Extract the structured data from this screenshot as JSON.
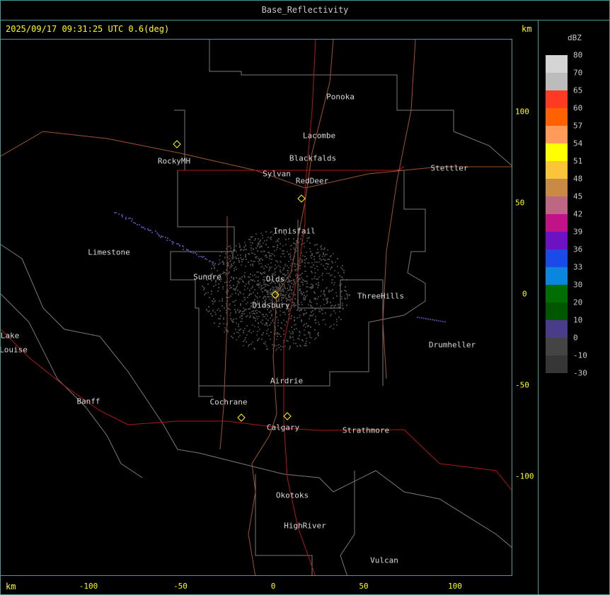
{
  "title": "Base_Reflectivity",
  "info": "2025/09/17 09:31:25 UTC 0.6(deg)",
  "unit_km": "km",
  "x_ticks": [
    "-100",
    "-50",
    "0",
    "50",
    "100"
  ],
  "y_ticks": [
    "100",
    "50",
    "0",
    "-50",
    "-100"
  ],
  "legend": {
    "title": "dBZ",
    "labels": [
      "80",
      "70",
      "65",
      "60",
      "57",
      "54",
      "51",
      "48",
      "45",
      "42",
      "39",
      "36",
      "33",
      "30",
      "20",
      "10",
      "0",
      "-10",
      "-30"
    ],
    "colors": [
      "#d4d4d4",
      "#bcbcbc",
      "#ff3a22",
      "#ff6000",
      "#ff9b5a",
      "#ffff00",
      "#fbc53a",
      "#c88a44",
      "#bd6785",
      "#c2128a",
      "#6c12c2",
      "#1a4ae8",
      "#0a86df",
      "#006e00",
      "#005700",
      "#4a3c8a",
      "#444444",
      "#363636"
    ]
  },
  "map": {
    "cities": [
      "Ponoka",
      "Lacombe",
      "Blackfalds",
      "Sylvan",
      "RedDeer",
      "Stettler",
      "RockyMH",
      "Innisfail",
      "Limestone",
      "Sundre",
      "Olds",
      "Didsbury",
      "ThreeHills",
      "Drumheller",
      "Lake",
      "Louise",
      "Airdrie",
      "Banff",
      "Cochrane",
      "Calgary",
      "Strathmore",
      "Okotoks",
      "HighRiver",
      "Vulcan"
    ]
  }
}
